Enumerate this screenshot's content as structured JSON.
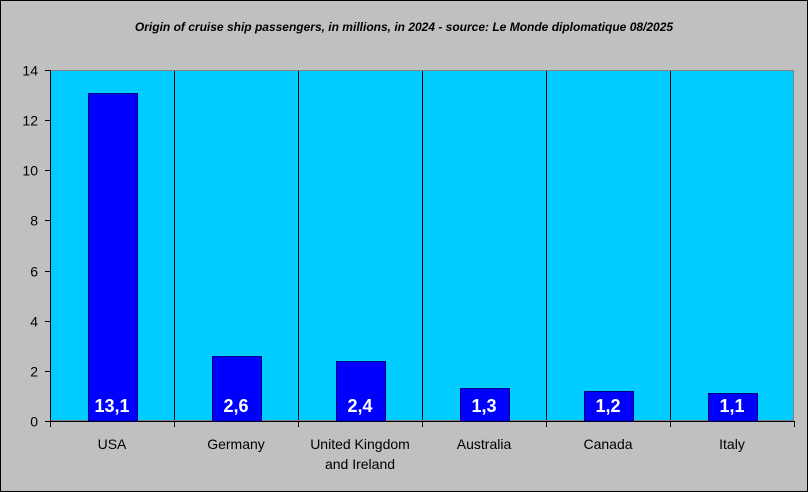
{
  "chart_data": {
    "type": "bar",
    "title": "Origin of cruise ship passengers, in millions, in 2024 - source: Le Monde diplomatique 08/2025",
    "categories": [
      [
        "USA"
      ],
      [
        "Germany"
      ],
      [
        "United Kingdom",
        "and Ireland"
      ],
      [
        "Australia"
      ],
      [
        "Canada"
      ],
      [
        "Italy"
      ]
    ],
    "values": [
      13.1,
      2.6,
      2.4,
      1.3,
      1.2,
      1.1
    ],
    "data_labels": [
      "13,1",
      "2,6",
      "2,4",
      "1,3",
      "1,2",
      "1,1"
    ],
    "yticks": [
      "0",
      "2",
      "4",
      "6",
      "8",
      "10",
      "12",
      "14"
    ],
    "ylim": [
      0,
      14
    ],
    "xlabel": "",
    "ylabel": "",
    "colors": {
      "background": "#c0c0c0",
      "plot_area": "#00ccff",
      "bar_fill": "#0000ff",
      "bar_stroke": "#000080",
      "label": "#ffffff"
    }
  }
}
